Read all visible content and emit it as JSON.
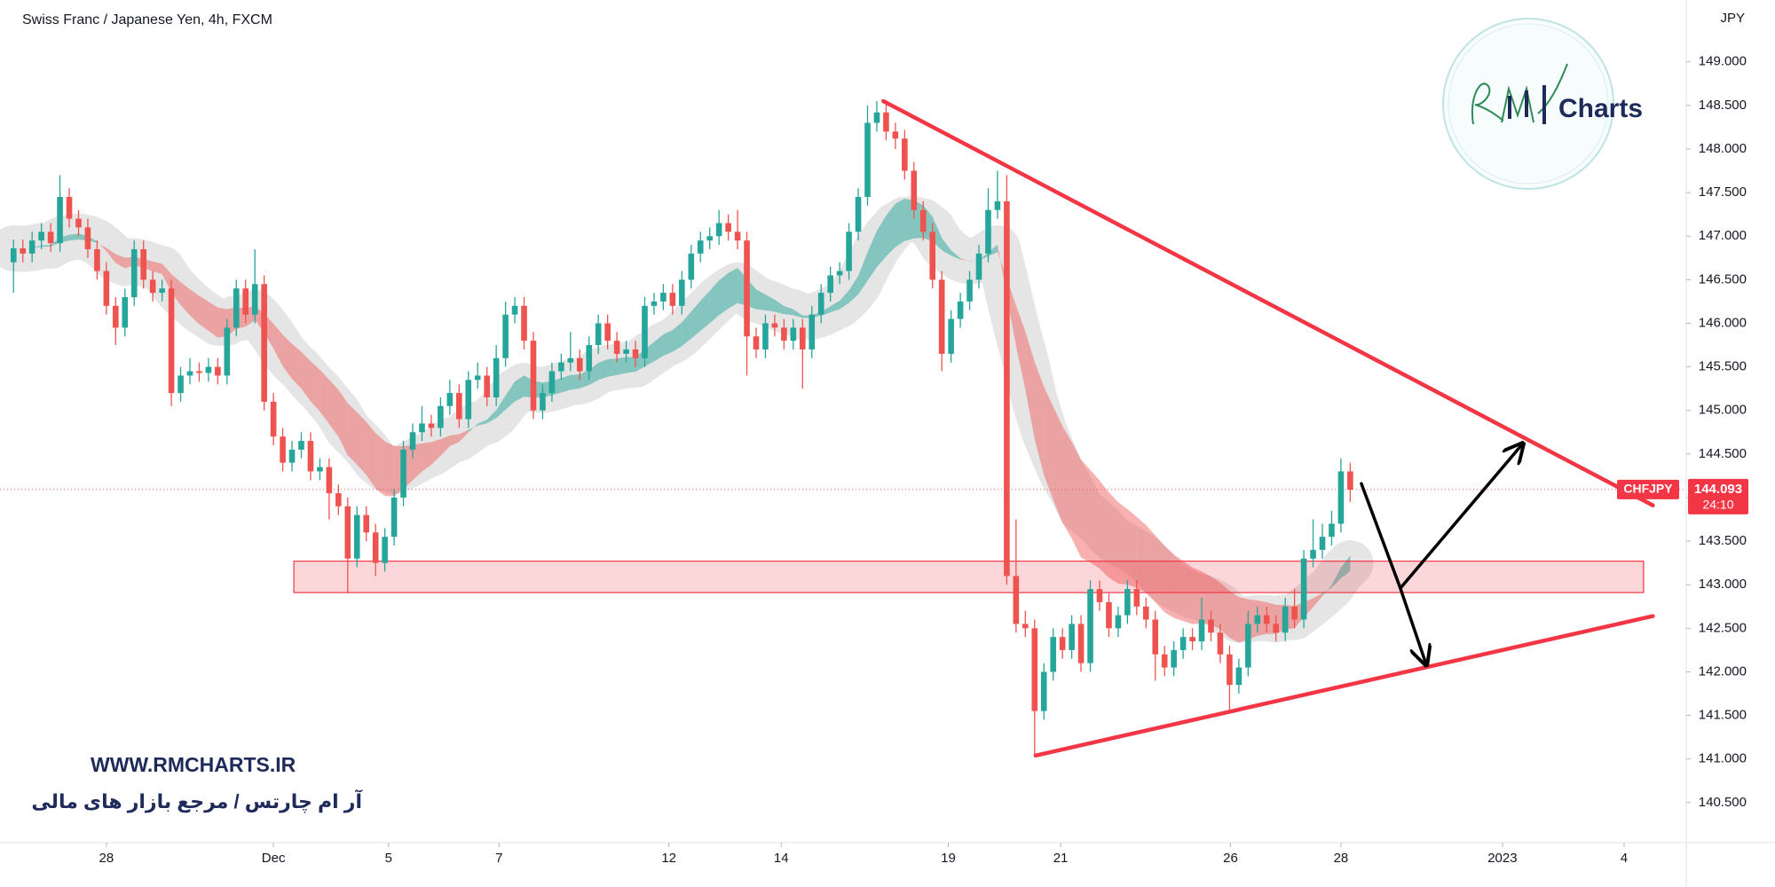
{
  "chart_data": {
    "type": "candlestick",
    "title": "Swiss Franc / Japanese Yen, 4h, FXCM",
    "y_label": "JPY",
    "symbol": "CHFJPY",
    "last_price": 144.093,
    "countdown": "24:10",
    "up_color": "#26a69a",
    "down_color": "#ef5350",
    "xlim": [
      -1.46,
      180.2
    ],
    "xticks": [
      {
        "value": 10,
        "label": "28"
      },
      {
        "value": 28,
        "label": "Dec"
      },
      {
        "value": 40.4,
        "label": "5"
      },
      {
        "value": 52.3,
        "label": "7"
      },
      {
        "value": 70.6,
        "label": "12"
      },
      {
        "value": 82.7,
        "label": "14"
      },
      {
        "value": 100.7,
        "label": "19"
      },
      {
        "value": 112.8,
        "label": "21"
      },
      {
        "value": 131.1,
        "label": "26"
      },
      {
        "value": 143,
        "label": "28"
      },
      {
        "value": 160.4,
        "label": "2023"
      },
      {
        "value": 173.5,
        "label": "4"
      }
    ],
    "ylim": [
      140.04,
      149.71
    ],
    "yticks": [
      {
        "value": 140.5,
        "label": "140.500"
      },
      {
        "value": 141,
        "label": "141.000"
      },
      {
        "value": 141.5,
        "label": "141.500"
      },
      {
        "value": 142,
        "label": "142.000"
      },
      {
        "value": 142.5,
        "label": "142.500"
      },
      {
        "value": 143,
        "label": "143.000"
      },
      {
        "value": 143.5,
        "label": "143.500"
      },
      {
        "value": 144,
        "label": "144.000"
      },
      {
        "value": 144.5,
        "label": "144.500"
      },
      {
        "value": 145,
        "label": "145.000"
      },
      {
        "value": 145.5,
        "label": "145.500"
      },
      {
        "value": 146,
        "label": "146.000"
      },
      {
        "value": 146.5,
        "label": "146.500"
      },
      {
        "value": 147,
        "label": "147.000"
      },
      {
        "value": 147.5,
        "label": "147.500"
      },
      {
        "value": 148,
        "label": "148.000"
      },
      {
        "value": 148.5,
        "label": "148.500"
      },
      {
        "value": 149,
        "label": "149.000"
      }
    ],
    "open": [
      146.7,
      146.86,
      146.8,
      146.95,
      147.05,
      146.92,
      147.45,
      147.2,
      147.1,
      146.85,
      146.6,
      146.2,
      145.95,
      146.3,
      146.85,
      146.5,
      146.35,
      146.4,
      145.2,
      145.4,
      145.45,
      145.43,
      145.5,
      145.4,
      145.95,
      146.4,
      146.1,
      146.45,
      145.1,
      144.7,
      144.4,
      144.55,
      144.65,
      144.3,
      144.35,
      144.05,
      143.9,
      143.3,
      143.8,
      143.6,
      143.25,
      143.55,
      144.0,
      144.55,
      144.75,
      144.85,
      144.8,
      145.05,
      145.2,
      144.9,
      145.35,
      145.4,
      145.15,
      145.6,
      146.1,
      146.2,
      145.8,
      145.0,
      145.2,
      145.45,
      145.55,
      145.6,
      145.45,
      145.75,
      146.0,
      145.8,
      145.65,
      145.7,
      145.6,
      146.2,
      146.25,
      146.35,
      146.2,
      146.5,
      146.8,
      146.95,
      147.0,
      147.15,
      147.05,
      146.95,
      145.85,
      145.7,
      146.0,
      145.95,
      145.8,
      145.95,
      145.7,
      146.1,
      146.35,
      146.55,
      146.6,
      147.05,
      147.45,
      148.3,
      148.42,
      148.2,
      148.12,
      147.75,
      147.3,
      147.05,
      146.5,
      145.65,
      146.05,
      146.25,
      146.5,
      146.8,
      147.3,
      147.4,
      143.1,
      142.55,
      142.5,
      141.55,
      142.0,
      142.4,
      142.25,
      142.55,
      142.1,
      142.95,
      142.8,
      142.5,
      142.65,
      142.95,
      142.75,
      142.6,
      142.2,
      142.05,
      142.25,
      142.4,
      142.35,
      142.6,
      142.45,
      142.2,
      141.85,
      142.05,
      142.55,
      142.65,
      142.55,
      142.45,
      142.75,
      142.6,
      143.3,
      143.4,
      143.55,
      143.7,
      144.3
    ],
    "high": [
      146.96,
      146.96,
      147.05,
      147.15,
      147.15,
      147.7,
      147.55,
      147.3,
      147.2,
      146.95,
      146.7,
      146.3,
      146.4,
      146.95,
      146.95,
      146.6,
      146.5,
      146.5,
      145.5,
      145.6,
      145.55,
      145.6,
      145.6,
      146.05,
      146.5,
      146.5,
      146.85,
      146.55,
      145.2,
      144.8,
      144.65,
      144.75,
      144.75,
      144.45,
      144.45,
      144.15,
      144.0,
      143.9,
      143.9,
      143.7,
      143.65,
      144.1,
      144.65,
      144.85,
      145.05,
      144.95,
      145.15,
      145.35,
      145.3,
      145.45,
      145.55,
      145.5,
      145.75,
      146.25,
      146.3,
      146.3,
      145.9,
      145.3,
      145.55,
      145.65,
      145.9,
      145.7,
      145.85,
      146.1,
      146.1,
      145.9,
      145.8,
      145.8,
      146.3,
      146.35,
      146.45,
      146.45,
      146.6,
      146.9,
      147.05,
      147.1,
      147.3,
      147.25,
      147.3,
      147.05,
      145.95,
      146.1,
      146.1,
      146.05,
      146.05,
      146.05,
      146.2,
      146.45,
      146.65,
      146.7,
      147.15,
      147.55,
      148.5,
      148.55,
      148.52,
      148.3,
      148.22,
      147.85,
      147.4,
      147.15,
      146.6,
      146.15,
      146.35,
      146.6,
      146.9,
      147.55,
      147.75,
      147.7,
      143.75,
      142.7,
      142.6,
      142.1,
      142.5,
      142.5,
      142.65,
      142.65,
      143.05,
      143.05,
      142.9,
      142.75,
      143.05,
      143.05,
      142.85,
      142.7,
      142.3,
      142.35,
      142.5,
      142.5,
      142.85,
      142.7,
      142.55,
      142.3,
      142.15,
      142.7,
      142.75,
      142.75,
      142.65,
      142.85,
      142.95,
      143.4,
      143.75,
      143.7,
      143.85,
      144.45,
      144.4
    ],
    "low": [
      146.35,
      146.7,
      146.7,
      146.85,
      146.82,
      146.82,
      147.1,
      147.0,
      146.75,
      146.5,
      146.1,
      145.75,
      145.85,
      146.2,
      146.4,
      146.25,
      146.25,
      145.05,
      145.1,
      145.3,
      145.33,
      145.33,
      145.3,
      145.3,
      145.85,
      146.0,
      146.0,
      145.0,
      144.6,
      144.3,
      144.3,
      144.45,
      144.2,
      144.2,
      143.75,
      143.8,
      142.9,
      143.2,
      143.5,
      143.1,
      143.15,
      143.45,
      143.9,
      144.45,
      144.65,
      144.7,
      144.7,
      144.95,
      144.8,
      144.8,
      145.25,
      145.05,
      145.05,
      145.5,
      146.0,
      145.7,
      144.9,
      144.9,
      145.1,
      145.35,
      145.45,
      145.35,
      145.35,
      145.65,
      145.7,
      145.55,
      145.55,
      145.5,
      145.5,
      146.1,
      146.15,
      146.1,
      146.1,
      146.4,
      146.7,
      146.85,
      146.9,
      146.95,
      146.85,
      145.4,
      145.6,
      145.6,
      145.85,
      145.7,
      145.7,
      145.25,
      145.6,
      146.0,
      146.25,
      146.45,
      146.5,
      146.95,
      147.35,
      148.2,
      148.1,
      148.0,
      147.65,
      147.2,
      146.95,
      146.4,
      145.45,
      145.55,
      145.95,
      146.15,
      146.4,
      146.7,
      147.2,
      143.0,
      142.45,
      142.4,
      141.05,
      141.45,
      141.9,
      142.15,
      142.15,
      142.0,
      142.0,
      142.7,
      142.4,
      142.4,
      142.55,
      142.65,
      142.5,
      141.9,
      141.95,
      141.95,
      142.15,
      142.25,
      142.25,
      142.35,
      142.1,
      141.55,
      141.75,
      141.95,
      142.45,
      142.45,
      142.35,
      142.35,
      142.5,
      142.5,
      143.2,
      143.3,
      143.45,
      143.6,
      143.95
    ],
    "close": [
      146.86,
      146.8,
      146.95,
      147.05,
      146.92,
      147.45,
      147.2,
      147.1,
      146.85,
      146.6,
      146.2,
      145.95,
      146.3,
      146.85,
      146.5,
      146.35,
      146.4,
      145.2,
      145.4,
      145.45,
      145.43,
      145.5,
      145.4,
      145.95,
      146.4,
      146.1,
      146.45,
      145.1,
      144.7,
      144.4,
      144.55,
      144.65,
      144.3,
      144.35,
      144.05,
      143.9,
      143.3,
      143.8,
      143.6,
      143.25,
      143.55,
      144.0,
      144.55,
      144.75,
      144.85,
      144.8,
      145.05,
      145.2,
      144.9,
      145.35,
      145.4,
      145.15,
      145.6,
      146.1,
      146.2,
      145.8,
      145.0,
      145.2,
      145.45,
      145.55,
      145.6,
      145.45,
      145.75,
      146.0,
      145.8,
      145.65,
      145.7,
      145.6,
      146.2,
      146.25,
      146.35,
      146.2,
      146.5,
      146.8,
      146.95,
      147.0,
      147.15,
      147.05,
      146.95,
      145.85,
      145.7,
      146.0,
      145.95,
      145.8,
      145.95,
      145.7,
      146.1,
      146.35,
      146.55,
      146.6,
      147.05,
      147.45,
      148.3,
      148.42,
      148.2,
      148.12,
      147.75,
      147.3,
      147.05,
      146.5,
      145.65,
      146.05,
      146.25,
      146.5,
      146.8,
      147.3,
      147.4,
      143.1,
      142.55,
      142.5,
      141.55,
      142.0,
      142.4,
      142.25,
      142.55,
      142.1,
      142.95,
      142.8,
      142.5,
      142.65,
      142.95,
      142.75,
      142.6,
      142.2,
      142.05,
      142.25,
      142.4,
      142.35,
      142.6,
      142.45,
      142.2,
      141.85,
      142.05,
      142.55,
      142.65,
      142.55,
      142.45,
      142.75,
      142.6,
      143.3,
      143.4,
      143.55,
      143.7,
      144.3,
      144.09
    ],
    "annotations": {
      "resistance": [
        [
          93.7,
          148.55
        ],
        [
          176.6,
          143.91
        ]
      ],
      "support": [
        [
          110.1,
          141.04
        ],
        [
          176.6,
          142.64
        ]
      ],
      "zone": {
        "x": [
          30.2,
          175.6
        ],
        "y": [
          142.91,
          143.27
        ]
      },
      "arrows": [
        [
          [
            145.2,
            144.16
          ],
          [
            149.4,
            142.96
          ]
        ],
        [
          [
            149.4,
            142.96
          ],
          [
            152.2,
            142.08
          ]
        ],
        [
          [
            149.4,
            142.96
          ],
          [
            162.6,
            144.62
          ]
        ]
      ]
    },
    "watermark": {
      "logo": "Charts",
      "url": "WWW.RMCHARTS.IR",
      "tagline": "آر ام چارتس / مرجع بازار های مالی"
    }
  }
}
